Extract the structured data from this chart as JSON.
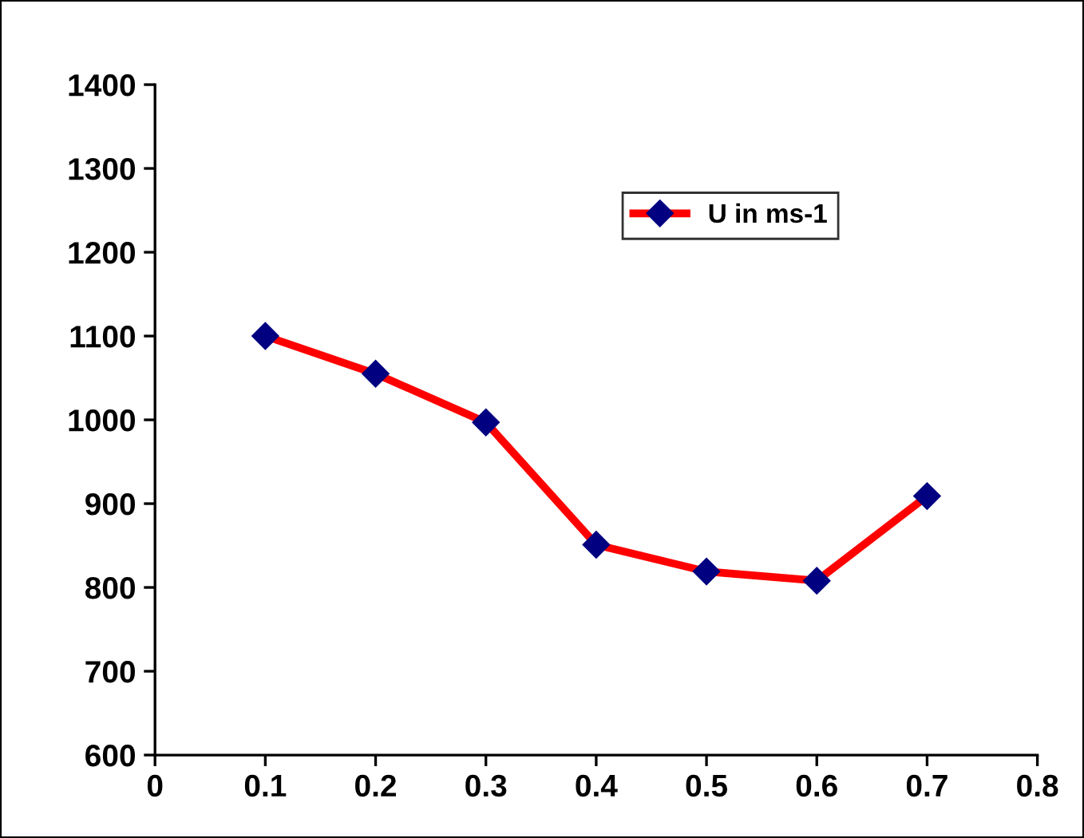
{
  "chart_data": {
    "type": "line",
    "x": [
      0.1,
      0.2,
      0.3,
      0.4,
      0.5,
      0.6,
      0.7
    ],
    "series": [
      {
        "name": "U in ms-1",
        "color": "#ff0000",
        "values": [
          1100,
          1055,
          997,
          851,
          819,
          808,
          909
        ]
      }
    ],
    "marker": "diamond",
    "line_style": "solid",
    "legend": "top right",
    "grid": false,
    "xlim": [
      0,
      0.8
    ],
    "xticks": [
      0,
      0.1,
      0.2,
      0.3,
      0.4,
      0.5,
      0.6,
      0.7,
      0.8
    ],
    "ylim": [
      600,
      1400
    ],
    "yticks": [
      600,
      700,
      800,
      900,
      1000,
      1100,
      1200,
      1300,
      1400
    ]
  }
}
